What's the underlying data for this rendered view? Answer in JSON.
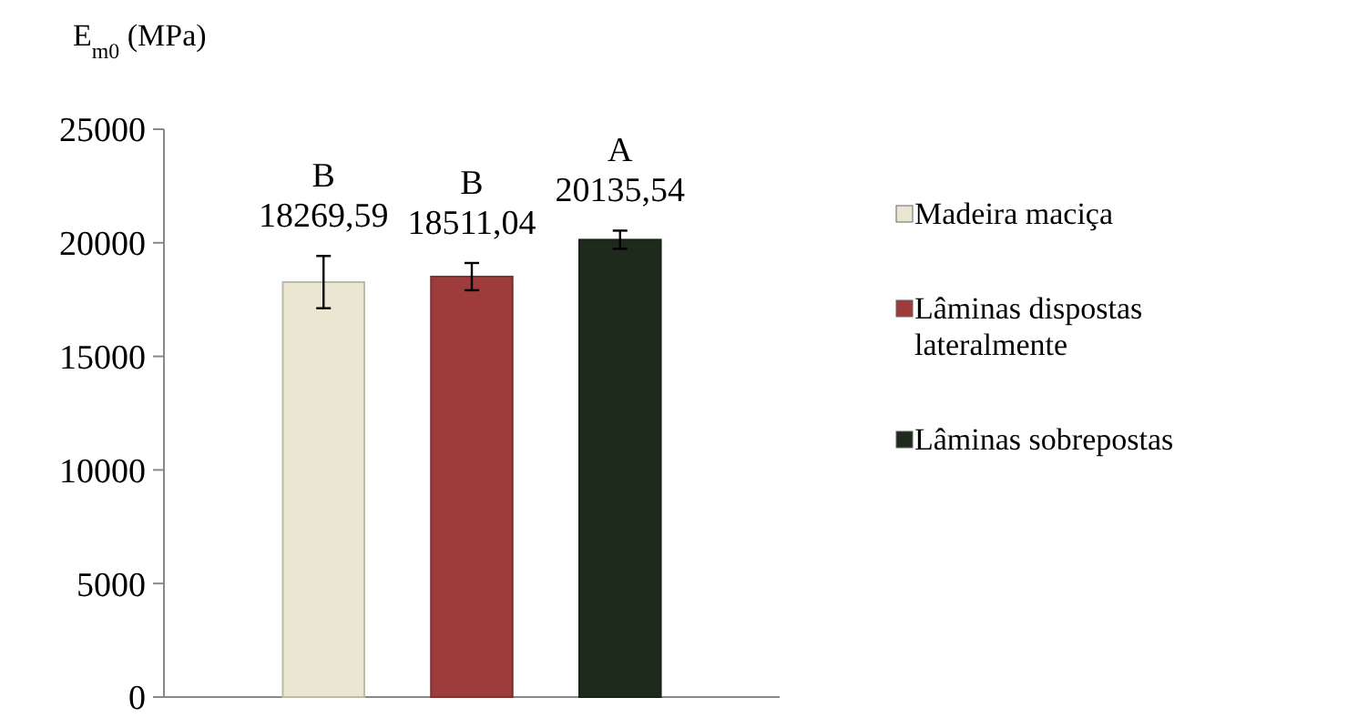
{
  "chart_data": {
    "type": "bar",
    "ylabel": "E$_{m0}$ (MPa)",
    "categories": [
      null
    ],
    "series": [
      {
        "name": "Madeira maciça",
        "color": "#ebe6d1",
        "values": [
          18269.59
        ],
        "errors": [
          1150
        ],
        "value_labels": [
          "18269,59"
        ]
      },
      {
        "name": "Lâminas dispostas lateralmente",
        "color": "#9e3b3b",
        "values": [
          18511.04
        ],
        "errors": [
          600
        ],
        "value_labels": [
          "18511,04"
        ]
      },
      {
        "name": "Lâminas sobrepostas",
        "color": "#1e2a1c",
        "values": [
          20135.54
        ],
        "errors": [
          400
        ],
        "value_labels": [
          "20135,54"
        ]
      }
    ],
    "annotations": [
      "B",
      "B",
      "A"
    ],
    "ylim": [
      0,
      25000
    ],
    "yticks": [
      0,
      5000,
      10000,
      15000,
      20000,
      25000
    ],
    "legend": "right"
  }
}
